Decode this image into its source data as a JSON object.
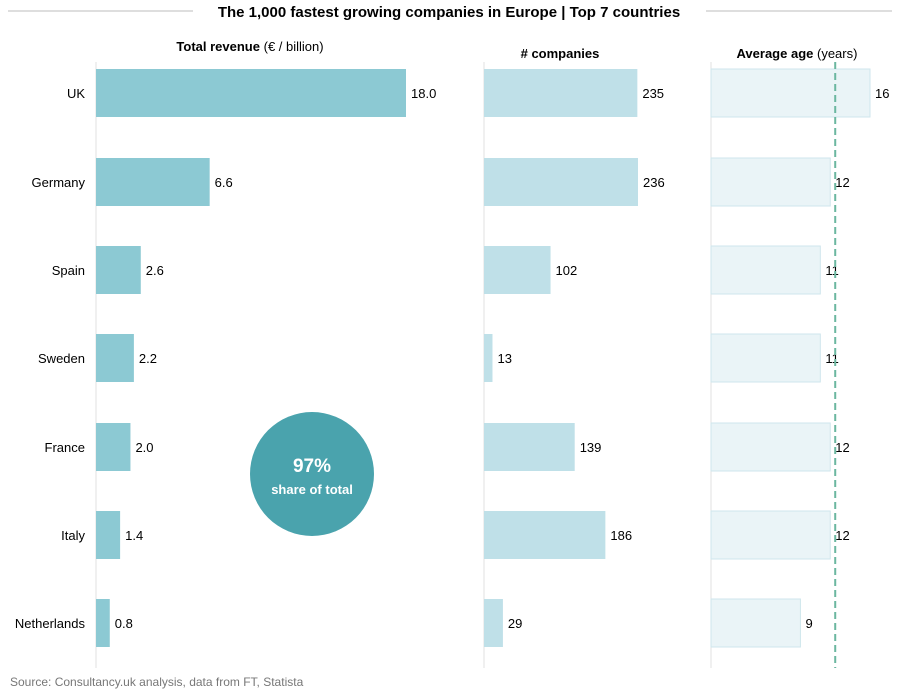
{
  "title": "The 1,000 fastest growing companies in Europe | Top 7 countries",
  "source": "Source: Consultancy.uk analysis, data from FT, Statista",
  "colors": {
    "revenue": "#8cc9d3",
    "companies": "#bfe0e8",
    "age_fill": "#eaf4f7",
    "age_stroke": "#cfe6ec",
    "circle": "#4aa3ad",
    "dashed": "#6bb7a0",
    "axis": "#e2e2e2",
    "rule": "#bdbdbd"
  },
  "badge": {
    "value": "97%",
    "label": "share of total"
  },
  "chart_data": [
    {
      "type": "bar",
      "orientation": "horizontal",
      "title": "Total revenue",
      "title_unit": "(€ / billion)",
      "categories": [
        "UK",
        "Germany",
        "Spain",
        "Sweden",
        "France",
        "Italy",
        "Netherlands"
      ],
      "values": [
        18.0,
        6.6,
        2.6,
        2.2,
        2.0,
        1.4,
        0.8
      ],
      "value_labels": [
        "18.0",
        "6.6",
        "2.6",
        "2.2",
        "2.0",
        "1.4",
        "0.8"
      ],
      "xlim": [
        0,
        18.0
      ],
      "grid": false
    },
    {
      "type": "bar",
      "orientation": "horizontal",
      "title": "# companies",
      "title_unit": "",
      "categories": [
        "UK",
        "Germany",
        "Spain",
        "Sweden",
        "France",
        "Italy",
        "Netherlands"
      ],
      "values": [
        235,
        236,
        102,
        13,
        139,
        186,
        29
      ],
      "value_labels": [
        "235",
        "236",
        "102",
        "13",
        "139",
        "186",
        "29"
      ],
      "xlim": [
        0,
        236
      ],
      "grid": false
    },
    {
      "type": "bar",
      "orientation": "horizontal",
      "title": "Average age",
      "title_unit": "(years)",
      "categories": [
        "UK",
        "Germany",
        "Spain",
        "Sweden",
        "France",
        "Italy",
        "Netherlands"
      ],
      "values": [
        16,
        12,
        11,
        11,
        12,
        12,
        9
      ],
      "value_labels": [
        "16",
        "12",
        "11",
        "11",
        "12",
        "12",
        "9"
      ],
      "xlim": [
        0,
        16
      ],
      "reference_line": 12.5,
      "grid": false
    }
  ]
}
